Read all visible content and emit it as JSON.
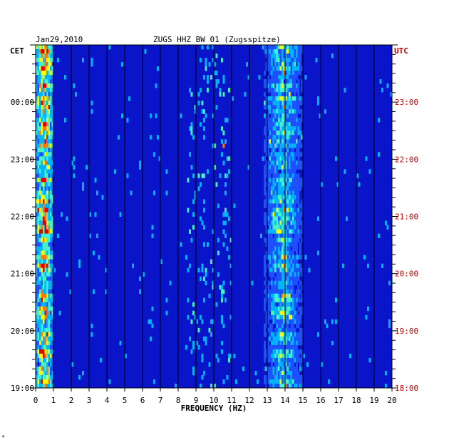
{
  "chart_data": {
    "type": "heatmap",
    "title": "ZUGS HHZ BW 01 (Zugsspitze)",
    "date": "Jan29,2010",
    "left_axis_label": "CET",
    "right_axis_label": "UTC",
    "xlabel": "FREQUENCY (HZ)",
    "xlim": [
      0,
      20
    ],
    "x_ticks": [
      "0",
      "1",
      "2",
      "3",
      "4",
      "5",
      "6",
      "7",
      "8",
      "9",
      "10",
      "11",
      "12",
      "13",
      "14",
      "15",
      "16",
      "17",
      "18",
      "19",
      "20"
    ],
    "cet_ticks": [
      "00:00",
      "23:00",
      "22:00",
      "21:00",
      "20:00",
      "19:00"
    ],
    "utc_ticks": [
      "23:00",
      "22:00",
      "21:00",
      "20:00",
      "19:00",
      "18:00"
    ],
    "colors": {
      "background": "#0a14c8",
      "gridline": "#000000",
      "utc_label": "#cc0000",
      "colormap": [
        "#0a14c8",
        "#1e50ff",
        "#00b4ff",
        "#46f0c8",
        "#ffff00",
        "#ff7800",
        "#dc0000"
      ]
    },
    "energy_bands": [
      {
        "from_hz": 0.0,
        "to_hz": 1.0,
        "note": "low-frequency noise, strongest"
      },
      {
        "from_hz": 12.8,
        "to_hz": 15.0,
        "note": "persistent band near 13-15 Hz"
      }
    ]
  },
  "footer_mark": "*"
}
